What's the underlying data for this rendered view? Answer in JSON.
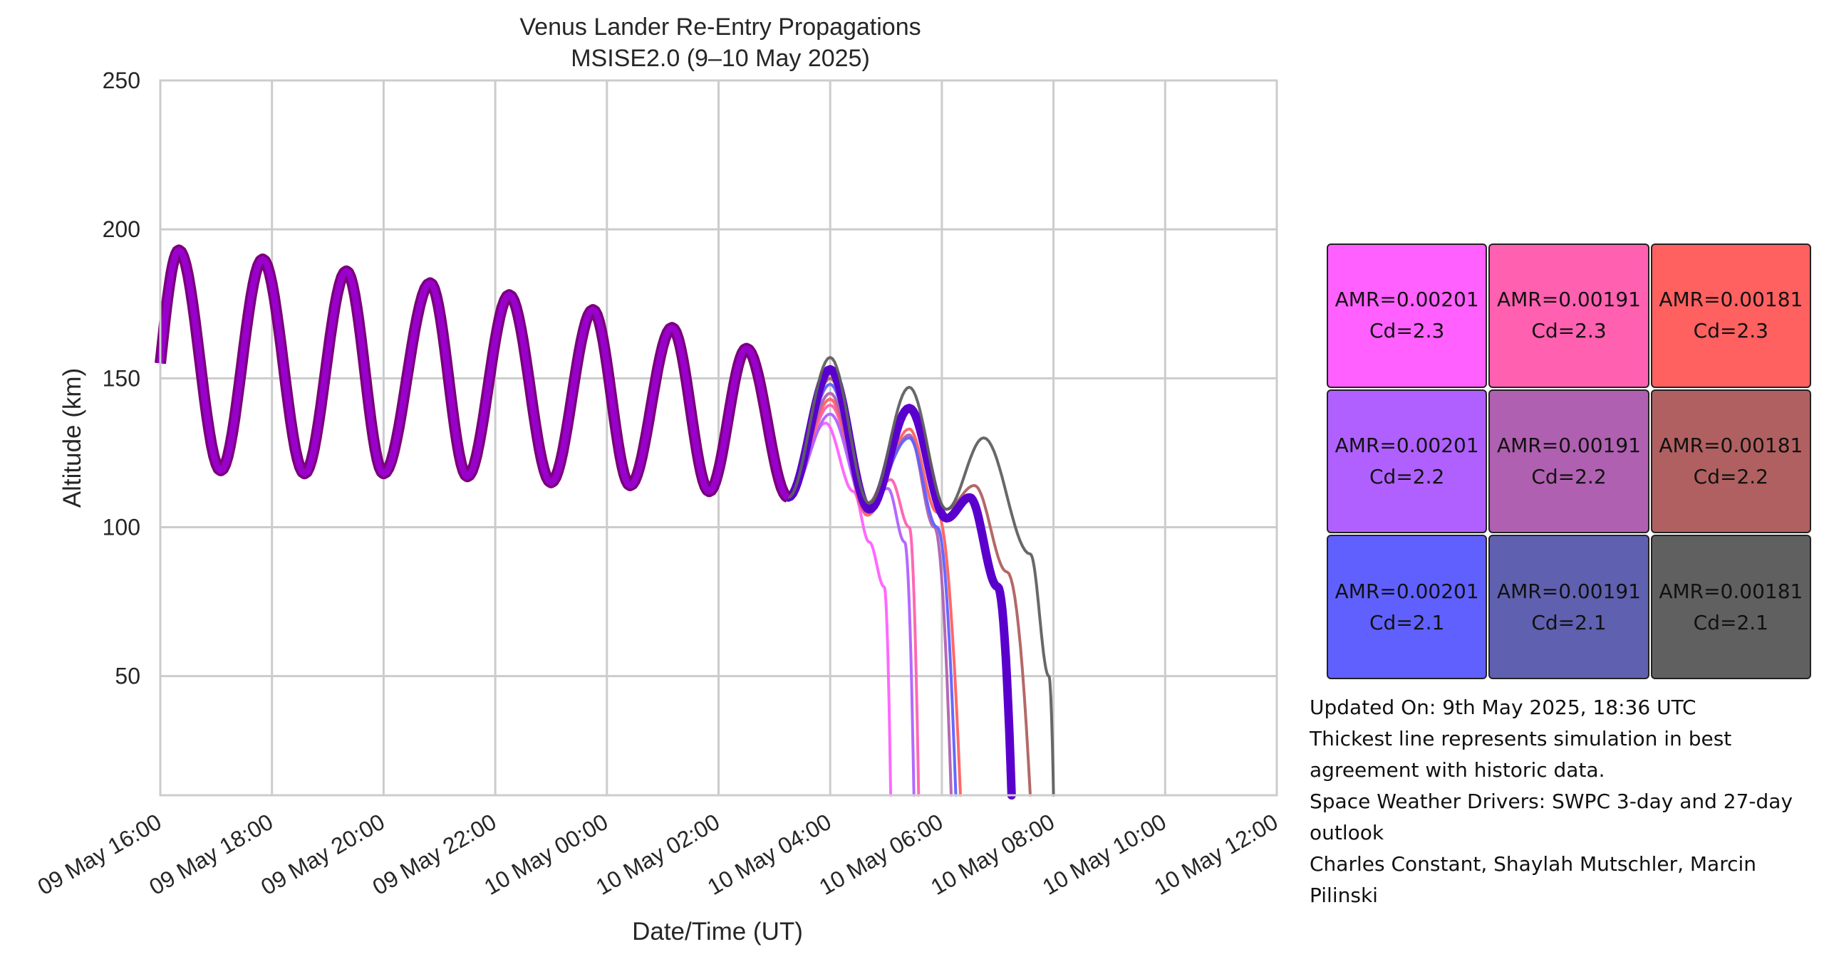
{
  "chart_data": {
    "type": "line",
    "title": "Venus Lander Re-Entry Propagations",
    "subtitle": "MSISE2.0 (9–10 May 2025)",
    "xlabel": "Date/Time (UT)",
    "ylabel": "Altitude (km)",
    "xlim": [
      "2025-05-09T16:00",
      "2025-05-10T12:00"
    ],
    "ylim": [
      10,
      250
    ],
    "x_ticks": [
      "09 May 16:00",
      "09 May 18:00",
      "09 May 20:00",
      "09 May 22:00",
      "10 May 00:00",
      "10 May 02:00",
      "10 May 04:00",
      "10 May 06:00",
      "10 May 08:00",
      "10 May 10:00",
      "10 May 12:00"
    ],
    "y_ticks": [
      "50",
      "100",
      "150",
      "200",
      "250"
    ],
    "grid": true,
    "best_series": "AMR=0.00191 Cd=2.1",
    "series": [
      {
        "name": "AMR=0.00201 Cd=2.3",
        "color": "#ff60ff",
        "reentry": "2025-05-10T05:05",
        "points": [
          [
            "2025-05-10T03:55",
            135
          ],
          [
            "2025-05-10T04:25",
            112
          ],
          [
            "2025-05-10T04:42",
            95
          ],
          [
            "2025-05-10T04:58",
            80
          ],
          [
            "2025-05-10T05:05",
            10
          ]
        ]
      },
      {
        "name": "AMR=0.00191 Cd=2.3",
        "color": "#ff60b0",
        "reentry": "2025-05-10T05:35",
        "points": [
          [
            "2025-05-10T04:00",
            141
          ],
          [
            "2025-05-10T04:40",
            106
          ],
          [
            "2025-05-10T05:05",
            116
          ],
          [
            "2025-05-10T05:25",
            100
          ],
          [
            "2025-05-10T05:35",
            10
          ]
        ]
      },
      {
        "name": "AMR=0.00181 Cd=2.3",
        "color": "#ff6060",
        "reentry": "2025-05-10T06:20",
        "points": [
          [
            "2025-05-10T04:00",
            143
          ],
          [
            "2025-05-10T04:40",
            104
          ],
          [
            "2025-05-10T05:25",
            133
          ],
          [
            "2025-05-10T05:55",
            105
          ],
          [
            "2025-05-10T06:20",
            10
          ]
        ]
      },
      {
        "name": "AMR=0.00201 Cd=2.2",
        "color": "#b060ff",
        "reentry": "2025-05-10T05:30",
        "points": [
          [
            "2025-05-10T04:00",
            138
          ],
          [
            "2025-05-10T04:38",
            108
          ],
          [
            "2025-05-10T05:02",
            113
          ],
          [
            "2025-05-10T05:20",
            95
          ],
          [
            "2025-05-10T05:30",
            10
          ]
        ]
      },
      {
        "name": "AMR=0.00191 Cd=2.2",
        "color": "#b060b0",
        "reentry": "2025-05-10T06:10",
        "points": [
          [
            "2025-05-10T04:00",
            145
          ],
          [
            "2025-05-10T04:40",
            105
          ],
          [
            "2025-05-10T05:25",
            131
          ],
          [
            "2025-05-10T05:52",
            100
          ],
          [
            "2025-05-10T06:10",
            10
          ]
        ]
      },
      {
        "name": "AMR=0.00181 Cd=2.2",
        "color": "#b06060",
        "reentry": "2025-05-10T07:35",
        "points": [
          [
            "2025-05-10T04:00",
            150
          ],
          [
            "2025-05-10T04:40",
            108
          ],
          [
            "2025-05-10T05:25",
            141
          ],
          [
            "2025-05-10T06:05",
            106
          ],
          [
            "2025-05-10T06:35",
            114
          ],
          [
            "2025-05-10T07:10",
            85
          ],
          [
            "2025-05-10T07:35",
            10
          ]
        ]
      },
      {
        "name": "AMR=0.00201 Cd=2.1",
        "color": "#6060ff",
        "reentry": "2025-05-10T06:15",
        "points": [
          [
            "2025-05-10T04:00",
            148
          ],
          [
            "2025-05-10T04:40",
            107
          ],
          [
            "2025-05-10T05:25",
            130
          ],
          [
            "2025-05-10T05:55",
            100
          ],
          [
            "2025-05-10T06:15",
            10
          ]
        ]
      },
      {
        "name": "AMR=0.00191 Cd=2.1",
        "color": "#6060b0",
        "reentry": "2025-05-10T07:15",
        "points": [
          [
            "2025-05-10T04:00",
            153
          ],
          [
            "2025-05-10T04:42",
            106
          ],
          [
            "2025-05-10T05:25",
            140
          ],
          [
            "2025-05-10T06:05",
            103
          ],
          [
            "2025-05-10T06:30",
            110
          ],
          [
            "2025-05-10T07:00",
            80
          ],
          [
            "2025-05-10T07:15",
            10
          ]
        ]
      },
      {
        "name": "AMR=0.00181 Cd=2.1",
        "color": "#606060",
        "reentry": "2025-05-10T08:00",
        "points": [
          [
            "2025-05-10T04:00",
            157
          ],
          [
            "2025-05-10T04:42",
            108
          ],
          [
            "2025-05-10T05:25",
            147
          ],
          [
            "2025-05-10T06:05",
            106
          ],
          [
            "2025-05-10T06:45",
            130
          ],
          [
            "2025-05-10T07:35",
            91
          ],
          [
            "2025-05-10T07:55",
            50
          ],
          [
            "2025-05-10T08:00",
            10
          ]
        ]
      }
    ],
    "common_path": {
      "color": "#9900cc",
      "start": [
        "2025-05-09T16:00",
        155
      ],
      "peaks": [
        [
          "2025-05-09T16:20",
          193
        ],
        [
          "2025-05-09T17:50",
          190
        ],
        [
          "2025-05-09T19:20",
          186
        ],
        [
          "2025-05-09T20:50",
          182
        ],
        [
          "2025-05-09T22:15",
          178
        ],
        [
          "2025-05-09T23:45",
          173
        ],
        [
          "2025-05-10T01:10",
          167
        ],
        [
          "2025-05-10T02:30",
          160
        ]
      ],
      "troughs": [
        [
          "2025-05-09T17:05",
          119
        ],
        [
          "2025-05-09T18:35",
          118
        ],
        [
          "2025-05-09T20:00",
          118
        ],
        [
          "2025-05-09T21:30",
          117
        ],
        [
          "2025-05-09T23:00",
          115
        ],
        [
          "2025-05-10T00:25",
          114
        ],
        [
          "2025-05-10T01:50",
          112
        ],
        [
          "2025-05-10T03:15",
          110
        ]
      ]
    }
  },
  "legend": {
    "cells": [
      {
        "amr": "AMR=0.00201",
        "cd": "Cd=2.3",
        "color": "#ff60ff"
      },
      {
        "amr": "AMR=0.00191",
        "cd": "Cd=2.3",
        "color": "#ff60b0"
      },
      {
        "amr": "AMR=0.00181",
        "cd": "Cd=2.3",
        "color": "#ff6060"
      },
      {
        "amr": "AMR=0.00201",
        "cd": "Cd=2.2",
        "color": "#b060ff"
      },
      {
        "amr": "AMR=0.00191",
        "cd": "Cd=2.2",
        "color": "#b060b0"
      },
      {
        "amr": "AMR=0.00181",
        "cd": "Cd=2.2",
        "color": "#b06060"
      },
      {
        "amr": "AMR=0.00201",
        "cd": "Cd=2.1",
        "color": "#6060ff"
      },
      {
        "amr": "AMR=0.00191",
        "cd": "Cd=2.1",
        "color": "#6060b0"
      },
      {
        "amr": "AMR=0.00181",
        "cd": "Cd=2.1",
        "color": "#606060"
      }
    ]
  },
  "notes": {
    "updated": "Updated On: 9th May 2025, 18:36 UTC",
    "thickest_1": "Thickest line represents simulation in best",
    "thickest_2": "agreement with historic data.",
    "drivers_1": "Space Weather Drivers: SWPC 3-day and 27-day",
    "drivers_2": "outlook",
    "authors_1": "Charles Constant, Shaylah Mutschler, Marcin",
    "authors_2": "Pilinski"
  }
}
